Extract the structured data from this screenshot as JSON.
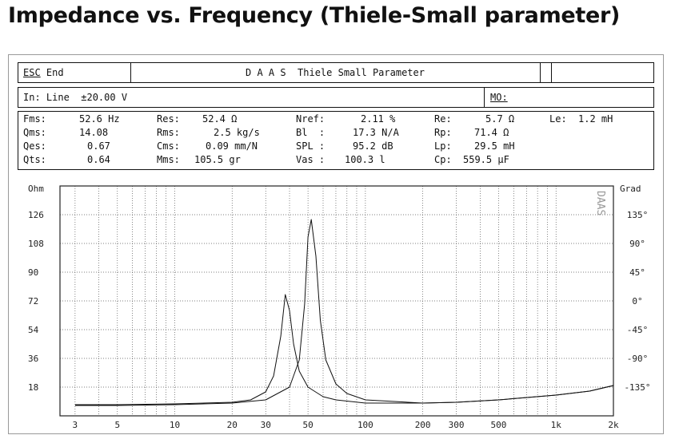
{
  "page_title": "Impedance vs. Frequency (Thiele-Small parameter)",
  "menu_bar": {
    "esc_label": "ESC",
    "end_label": "End",
    "window_title": "D A A S  Thiele Small Parameter"
  },
  "input_bar": {
    "input_text": "In: Line  ±20.00 V",
    "mo_label": "MO:"
  },
  "params": [
    {
      "label": "Fms:",
      "value": "52.6 Hz"
    },
    {
      "label": "Qms:",
      "value": "14.08"
    },
    {
      "label": "Qes:",
      "value": "0.67"
    },
    {
      "label": "Qts:",
      "value": "0.64"
    },
    {
      "label": "Res:",
      "value": "52.4 Ω"
    },
    {
      "label": "Rms:",
      "value": "2.5 kg/s"
    },
    {
      "label": "Cms:",
      "value": "0.09 mm/N"
    },
    {
      "label": "Mms:",
      "value": "105.5 gr"
    },
    {
      "label": "Nref:",
      "value": "2.11 %"
    },
    {
      "label": "Bl  :",
      "value": "17.3 N/A"
    },
    {
      "label": "SPL :",
      "value": "95.2 dB"
    },
    {
      "label": "Vas :",
      "value": "100.3 l"
    },
    {
      "label": "Re:",
      "value": "5.7 Ω"
    },
    {
      "label": "Rp:",
      "value": "71.4 Ω"
    },
    {
      "label": "Lp:",
      "value": "29.5 mH"
    },
    {
      "label": "Cp:",
      "value": "559.5 µF"
    },
    {
      "label": "Le:",
      "value": "1.2 mH"
    }
  ],
  "chart_data": {
    "type": "line",
    "x_scale": "log",
    "xlim": [
      2.5,
      2000
    ],
    "ylim": [
      0,
      144
    ],
    "y_unit_label": "Ohm",
    "y2_unit_label": "Grad",
    "watermark": "DAAS",
    "x_ticks": [
      {
        "value": 3,
        "label": "3"
      },
      {
        "value": 5,
        "label": "5"
      },
      {
        "value": 10,
        "label": "10"
      },
      {
        "value": 20,
        "label": "20"
      },
      {
        "value": 30,
        "label": "30"
      },
      {
        "value": 50,
        "label": "50"
      },
      {
        "value": 100,
        "label": "100"
      },
      {
        "value": 200,
        "label": "200"
      },
      {
        "value": 300,
        "label": "300"
      },
      {
        "value": 500,
        "label": "500"
      },
      {
        "value": 1000,
        "label": "1k"
      },
      {
        "value": 2000,
        "label": "2k"
      }
    ],
    "y_ticks": [
      {
        "value": 18,
        "label": "18"
      },
      {
        "value": 36,
        "label": "36"
      },
      {
        "value": 54,
        "label": "54"
      },
      {
        "value": 72,
        "label": "72"
      },
      {
        "value": 90,
        "label": "90"
      },
      {
        "value": 108,
        "label": "108"
      },
      {
        "value": 126,
        "label": "126"
      }
    ],
    "y2_ticks": [
      {
        "value": 126,
        "label": "135°"
      },
      {
        "value": 108,
        "label": "90°"
      },
      {
        "value": 90,
        "label": "45°"
      },
      {
        "value": 72,
        "label": "0°"
      },
      {
        "value": 54,
        "label": "-45°"
      },
      {
        "value": 36,
        "label": "-90°"
      },
      {
        "value": 18,
        "label": "-135°"
      }
    ],
    "grid": true,
    "series": [
      {
        "x": [
          3,
          5,
          10,
          20,
          25,
          30,
          33,
          36,
          38,
          40,
          42,
          45,
          50,
          60,
          70,
          100,
          200,
          300,
          500,
          1000,
          1500,
          2000
        ],
        "y": [
          7,
          7,
          7.5,
          8.5,
          10,
          15,
          25,
          50,
          76,
          66,
          45,
          28,
          18,
          12,
          10,
          8,
          8,
          8.5,
          10,
          13,
          15.5,
          19
        ]
      },
      {
        "x": [
          3,
          5,
          10,
          20,
          30,
          40,
          45,
          48,
          50,
          52,
          55,
          58,
          62,
          70,
          80,
          100,
          200,
          300,
          500,
          1000,
          1500,
          2000
        ],
        "y": [
          6.5,
          6.5,
          7,
          8,
          10,
          18,
          35,
          70,
          112,
          123,
          100,
          60,
          35,
          20,
          14,
          10,
          8,
          8.5,
          10,
          13,
          15.5,
          19
        ]
      }
    ]
  }
}
